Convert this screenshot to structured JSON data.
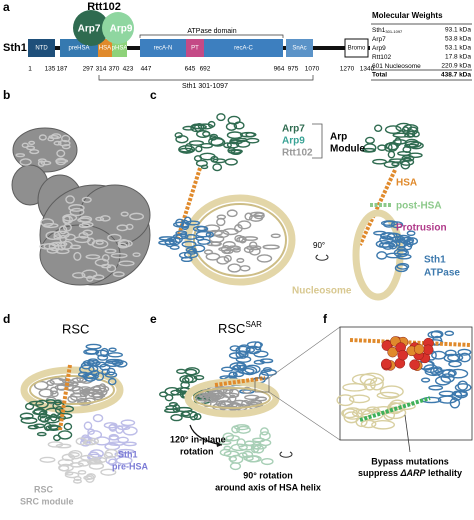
{
  "panel_a": {
    "label": "a",
    "rtt102": "Rtt102",
    "arp7": "Arp7",
    "arp9": "Arp9",
    "protein": "Sth1",
    "atpase_domain": "ATPase domain",
    "construct": "Sth1 301-1097",
    "domains": [
      "NTD",
      "preHSA",
      "HSA",
      "pHSA",
      "recA-N",
      "PT",
      "recA-C",
      "SnAc",
      "Bromo"
    ],
    "positions": [
      "1",
      "135",
      "187",
      "297",
      "314",
      "370",
      "423",
      "447",
      "645",
      "692",
      "964",
      "975",
      "1070",
      "1270",
      "1340"
    ],
    "table": {
      "title": "Molecular Weights",
      "rows": [
        {
          "name": "Sth1",
          "sub": "301-1097",
          "weight": "93.1 kDa"
        },
        {
          "name": "Arp7",
          "weight": "53.8 kDa"
        },
        {
          "name": "Arp9",
          "weight": "53.1 kDa"
        },
        {
          "name": "Rtt102",
          "weight": "17.8 kDa"
        },
        {
          "name": "601 Nucleosome",
          "weight": "220.9 kDa"
        }
      ],
      "total": {
        "name": "Total",
        "weight": "438.7 kDa"
      }
    }
  },
  "panel_b": {
    "label": "b"
  },
  "panel_c": {
    "label": "c",
    "arp7": "Arp7",
    "arp9": "Arp9",
    "rtt102": "Rtt102",
    "arp_module": [
      "Arp",
      "Module"
    ],
    "hsa": "HSA",
    "post_hsa": "post-HSA",
    "protrusion": "Protrusion",
    "rotation": "90°",
    "sth1_atpase": [
      "Sth1",
      "ATPase"
    ],
    "nucleosome": "Nucleosome"
  },
  "panel_d": {
    "label": "d",
    "title": "RSC",
    "sth1_pre_hsa": [
      "Sth1",
      "pre-HSA"
    ],
    "src_module": [
      "RSC",
      "SRC module"
    ]
  },
  "panel_e": {
    "label": "e",
    "title": "RSC",
    "title_sup": "SAR",
    "in_plane": [
      "120° in-plane",
      "rotation"
    ],
    "helix_rotation": [
      "90° rotation",
      "around axis of HSA helix"
    ]
  },
  "panel_f": {
    "label": "f",
    "caption": [
      "Bypass mutations",
      "suppress",
      "ΔARP",
      "lethality"
    ]
  }
}
